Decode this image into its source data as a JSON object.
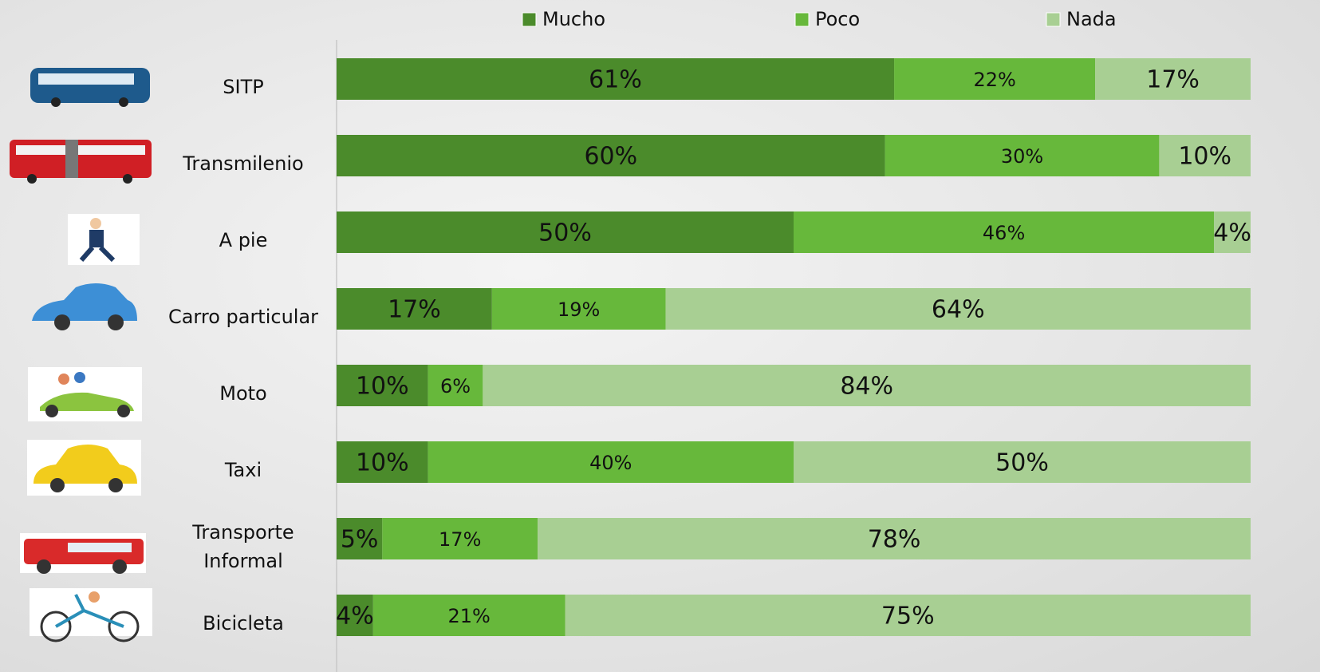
{
  "chart_data": {
    "type": "bar",
    "orientation": "horizontal",
    "stacked": true,
    "categories": [
      "SITP",
      "Transmilenio",
      "A pie",
      "Carro particular",
      "Moto",
      "Taxi",
      "Transporte Informal",
      "Bicicleta"
    ],
    "series": [
      {
        "name": "Mucho",
        "color": "#4b8b2b",
        "values": [
          61,
          60,
          50,
          17,
          10,
          10,
          5,
          4
        ],
        "value_labels": [
          "61%",
          "60%",
          "50%",
          "17%",
          "10%",
          "10%",
          "5%",
          "4%"
        ]
      },
      {
        "name": "Poco",
        "color": "#67b83b",
        "values": [
          22,
          30,
          46,
          19,
          6,
          40,
          17,
          21
        ],
        "value_labels": [
          "22%",
          "30%",
          "46%",
          "19%",
          "6%",
          "40%",
          "17%",
          "21%"
        ]
      },
      {
        "name": "Nada",
        "color": "#a8cf93",
        "values": [
          17,
          10,
          4,
          64,
          84,
          50,
          78,
          75
        ],
        "value_labels": [
          "17%",
          "10%",
          "4%",
          "64%",
          "84%",
          "50%",
          "78%",
          "75%"
        ]
      }
    ],
    "xlim": [
      0,
      100
    ],
    "legend": "top"
  }
}
